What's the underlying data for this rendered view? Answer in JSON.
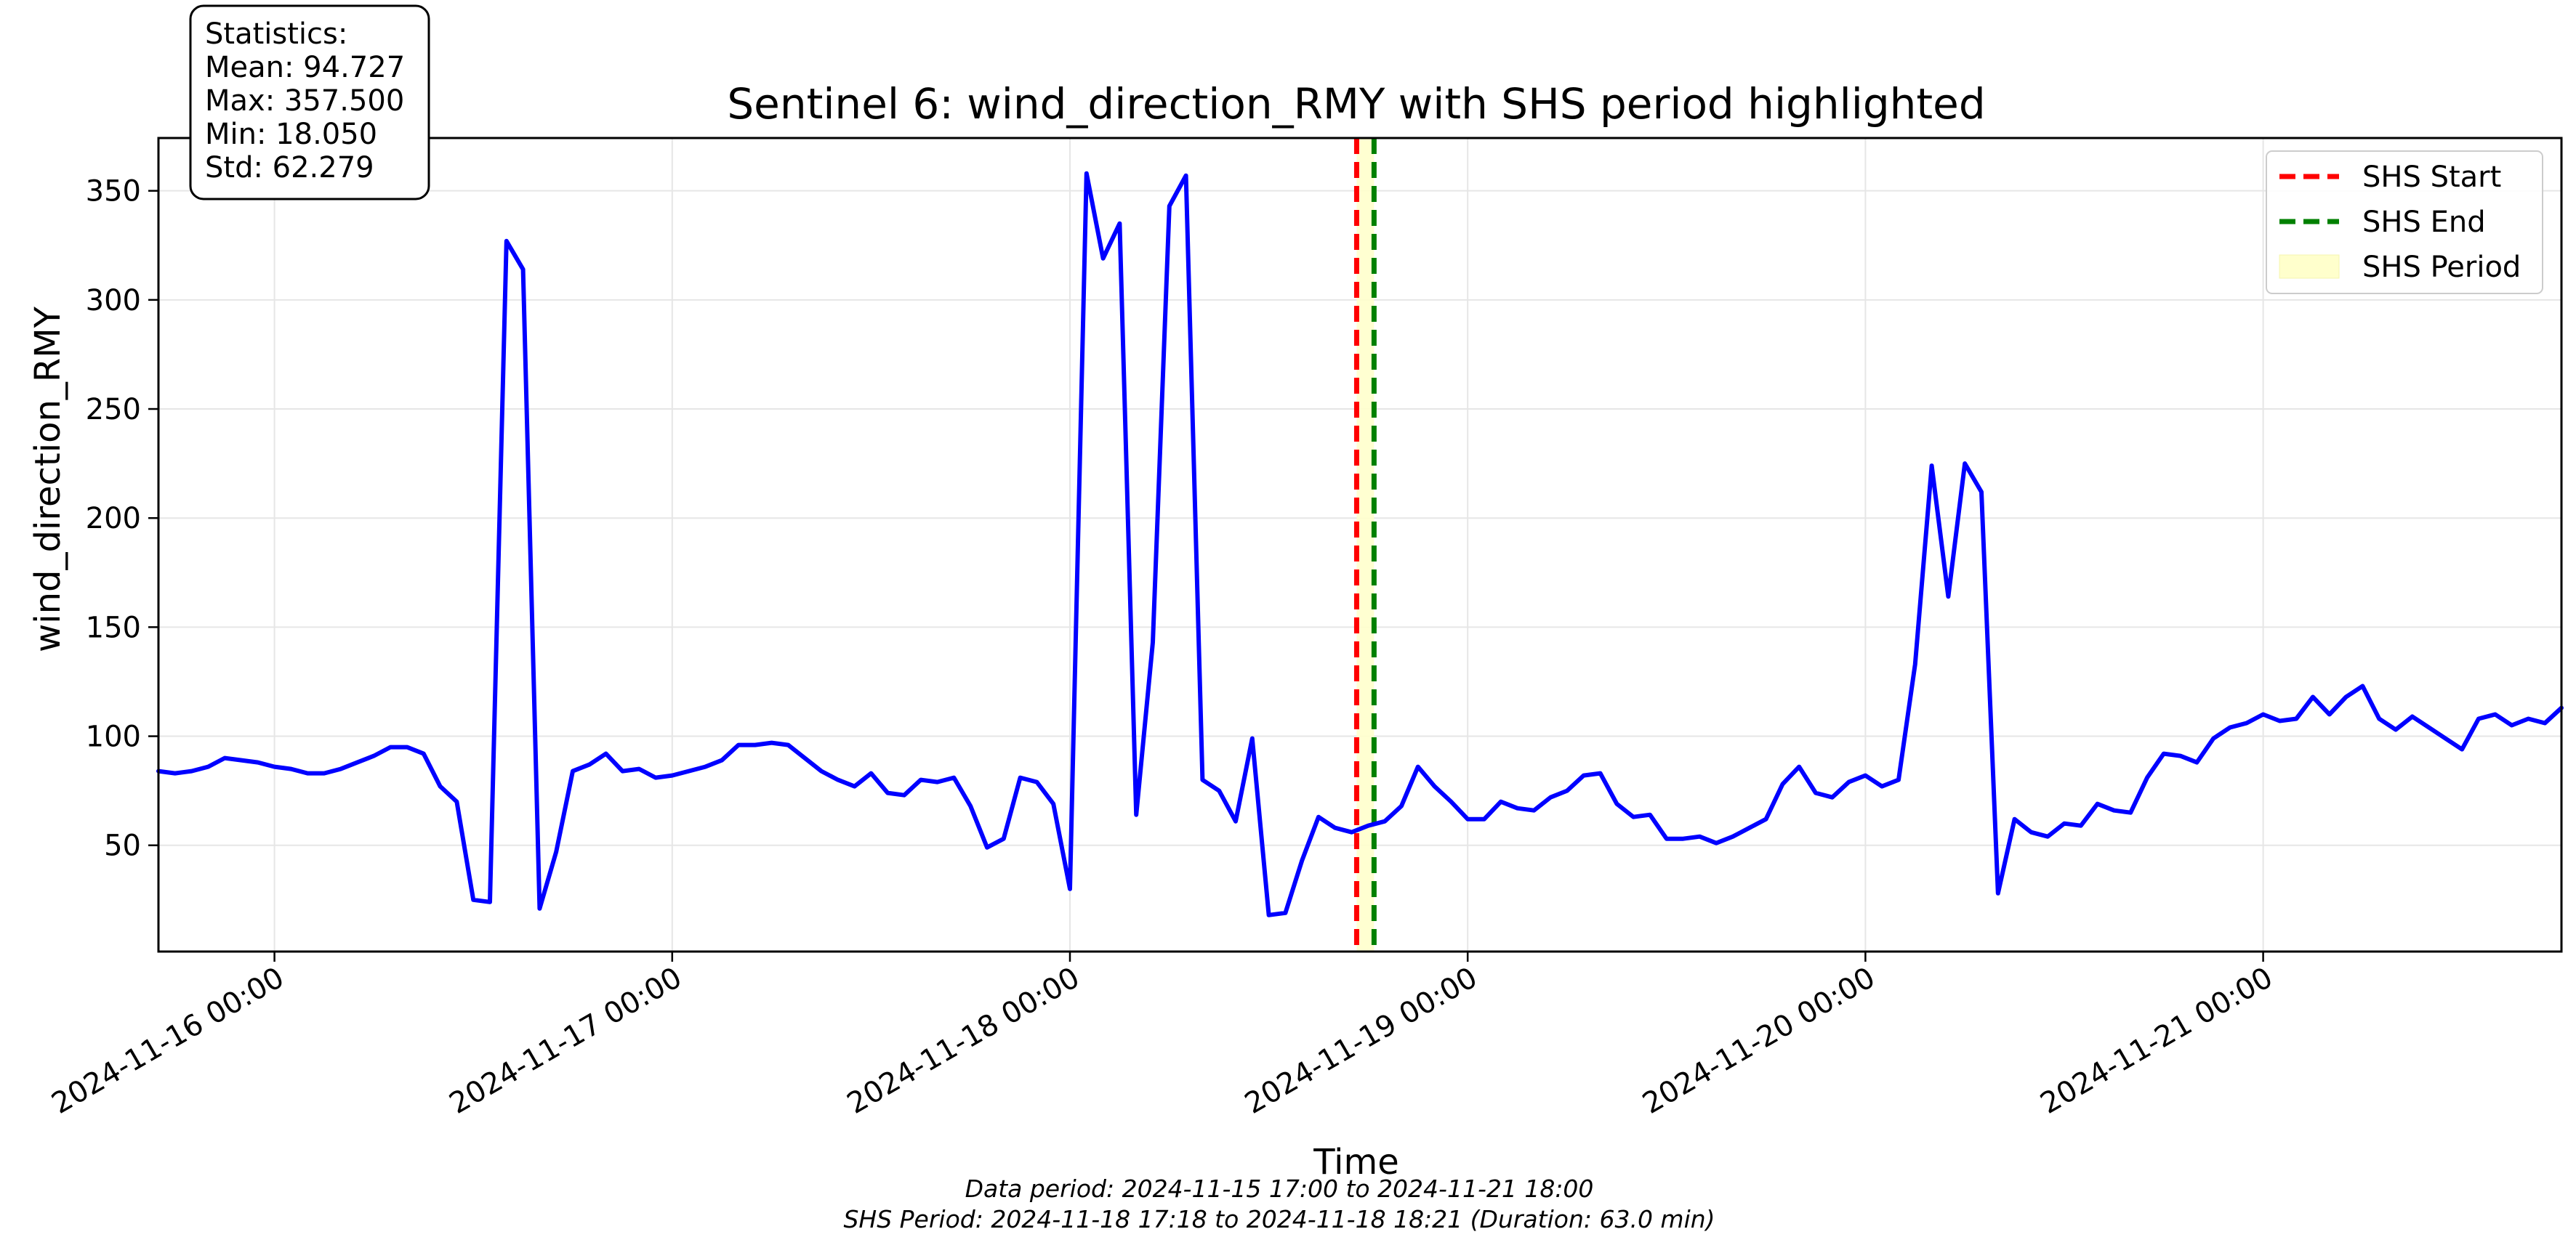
{
  "chart_data": {
    "type": "line",
    "title": "Sentinel 6: wind_direction_RMY with SHS period highlighted",
    "xlabel": "Time",
    "ylabel": "wind_direction_RMY",
    "x_range": [
      "2024-11-15 17:00",
      "2024-11-21 18:00"
    ],
    "ylim": [
      1.3,
      374.2
    ],
    "yticks": [
      50,
      100,
      150,
      200,
      250,
      300,
      350
    ],
    "yticklabels": [
      "50",
      "100",
      "150",
      "200",
      "250",
      "300",
      "350"
    ],
    "xticks": [
      "2024-11-16 00:00",
      "2024-11-17 00:00",
      "2024-11-18 00:00",
      "2024-11-19 00:00",
      "2024-11-20 00:00",
      "2024-11-21 00:00"
    ],
    "xticklabels": [
      "2024-11-16 00:00",
      "2024-11-17 00:00",
      "2024-11-18 00:00",
      "2024-11-19 00:00",
      "2024-11-20 00:00",
      "2024-11-21 00:00"
    ],
    "grid": true,
    "legend_position": "top-right",
    "series": [
      {
        "name": "wind_direction_RMY",
        "color": "#0000ff",
        "x": [
          "2024-11-15 17:00",
          "2024-11-15 18:00",
          "2024-11-15 19:00",
          "2024-11-15 20:00",
          "2024-11-15 21:00",
          "2024-11-15 22:00",
          "2024-11-15 23:00",
          "2024-11-16 00:00",
          "2024-11-16 01:00",
          "2024-11-16 02:00",
          "2024-11-16 03:00",
          "2024-11-16 04:00",
          "2024-11-16 05:00",
          "2024-11-16 06:00",
          "2024-11-16 07:00",
          "2024-11-16 08:00",
          "2024-11-16 09:00",
          "2024-11-16 10:00",
          "2024-11-16 11:00",
          "2024-11-16 12:00",
          "2024-11-16 13:00",
          "2024-11-16 14:00",
          "2024-11-16 15:00",
          "2024-11-16 16:00",
          "2024-11-16 17:00",
          "2024-11-16 18:00",
          "2024-11-16 19:00",
          "2024-11-16 20:00",
          "2024-11-16 21:00",
          "2024-11-16 22:00",
          "2024-11-16 23:00",
          "2024-11-17 00:00",
          "2024-11-17 01:00",
          "2024-11-17 02:00",
          "2024-11-17 03:00",
          "2024-11-17 04:00",
          "2024-11-17 05:00",
          "2024-11-17 06:00",
          "2024-11-17 07:00",
          "2024-11-17 08:00",
          "2024-11-17 09:00",
          "2024-11-17 10:00",
          "2024-11-17 11:00",
          "2024-11-17 12:00",
          "2024-11-17 13:00",
          "2024-11-17 14:00",
          "2024-11-17 15:00",
          "2024-11-17 16:00",
          "2024-11-17 17:00",
          "2024-11-17 18:00",
          "2024-11-17 19:00",
          "2024-11-17 20:00",
          "2024-11-17 21:00",
          "2024-11-17 22:00",
          "2024-11-17 23:00",
          "2024-11-18 00:00",
          "2024-11-18 01:00",
          "2024-11-18 02:00",
          "2024-11-18 03:00",
          "2024-11-18 04:00",
          "2024-11-18 05:00",
          "2024-11-18 06:00",
          "2024-11-18 07:00",
          "2024-11-18 08:00",
          "2024-11-18 09:00",
          "2024-11-18 10:00",
          "2024-11-18 11:00",
          "2024-11-18 12:00",
          "2024-11-18 13:00",
          "2024-11-18 14:00",
          "2024-11-18 15:00",
          "2024-11-18 16:00",
          "2024-11-18 17:00",
          "2024-11-18 18:00",
          "2024-11-18 19:00",
          "2024-11-18 20:00",
          "2024-11-18 21:00",
          "2024-11-18 22:00",
          "2024-11-18 23:00",
          "2024-11-19 00:00",
          "2024-11-19 01:00",
          "2024-11-19 02:00",
          "2024-11-19 03:00",
          "2024-11-19 04:00",
          "2024-11-19 05:00",
          "2024-11-19 06:00",
          "2024-11-19 07:00",
          "2024-11-19 08:00",
          "2024-11-19 09:00",
          "2024-11-19 10:00",
          "2024-11-19 11:00",
          "2024-11-19 12:00",
          "2024-11-19 13:00",
          "2024-11-19 14:00",
          "2024-11-19 15:00",
          "2024-11-19 16:00",
          "2024-11-19 17:00",
          "2024-11-19 18:00",
          "2024-11-19 19:00",
          "2024-11-19 20:00",
          "2024-11-19 21:00",
          "2024-11-19 22:00",
          "2024-11-19 23:00",
          "2024-11-20 00:00",
          "2024-11-20 01:00",
          "2024-11-20 02:00",
          "2024-11-20 03:00",
          "2024-11-20 04:00",
          "2024-11-20 05:00",
          "2024-11-20 06:00",
          "2024-11-20 07:00",
          "2024-11-20 08:00",
          "2024-11-20 09:00",
          "2024-11-20 10:00",
          "2024-11-20 11:00",
          "2024-11-20 12:00",
          "2024-11-20 13:00",
          "2024-11-20 14:00",
          "2024-11-20 15:00",
          "2024-11-20 16:00",
          "2024-11-20 17:00",
          "2024-11-20 18:00",
          "2024-11-20 19:00",
          "2024-11-20 20:00",
          "2024-11-20 21:00",
          "2024-11-20 22:00",
          "2024-11-20 23:00",
          "2024-11-21 00:00",
          "2024-11-21 01:00",
          "2024-11-21 02:00",
          "2024-11-21 03:00",
          "2024-11-21 04:00",
          "2024-11-21 05:00",
          "2024-11-21 06:00",
          "2024-11-21 07:00",
          "2024-11-21 08:00",
          "2024-11-21 09:00",
          "2024-11-21 10:00",
          "2024-11-21 11:00",
          "2024-11-21 12:00",
          "2024-11-21 13:00",
          "2024-11-21 14:00",
          "2024-11-21 15:00",
          "2024-11-21 16:00",
          "2024-11-21 17:00",
          "2024-11-21 18:00"
        ],
        "y": [
          84,
          83,
          84,
          86,
          90,
          89,
          88,
          86,
          85,
          83,
          83,
          85,
          88,
          91,
          95,
          95,
          92,
          77,
          70,
          25,
          24,
          327,
          314,
          21,
          47,
          84,
          87,
          92,
          84,
          85,
          81,
          82,
          84,
          86,
          89,
          96,
          96,
          97,
          96,
          90,
          84,
          80,
          77,
          83,
          74,
          73,
          80,
          79,
          81,
          68,
          49,
          53,
          81,
          79,
          69,
          30,
          358,
          319,
          335,
          64,
          143,
          343,
          357,
          80,
          75,
          61,
          99,
          18,
          19,
          43,
          63,
          58,
          56,
          59,
          61,
          68,
          86,
          77,
          70,
          62,
          62,
          70,
          67,
          66,
          72,
          75,
          82,
          83,
          69,
          63,
          64,
          53,
          53,
          54,
          51,
          54,
          58,
          62,
          78,
          86,
          74,
          72,
          79,
          82,
          77,
          80,
          133,
          224,
          164,
          225,
          212,
          28,
          62,
          56,
          54,
          60,
          59,
          69,
          66,
          65,
          81,
          92,
          91,
          88,
          99,
          104,
          106,
          110,
          107,
          108,
          118,
          110,
          118,
          123,
          108,
          103,
          109,
          104,
          99,
          94,
          108,
          110,
          105,
          108,
          106,
          113
        ]
      }
    ],
    "shs": {
      "start": "2024-11-18 17:18",
      "end": "2024-11-18 18:21"
    },
    "legend": {
      "items": [
        {
          "label": "SHS Start",
          "color": "#ff0000",
          "kind": "dashed"
        },
        {
          "label": "SHS End",
          "color": "#008000",
          "kind": "dashed"
        },
        {
          "label": "SHS Period",
          "color": "#ffffcc",
          "kind": "patch"
        }
      ]
    },
    "stats_box": {
      "lines": [
        "Statistics:",
        "Mean: 94.727",
        "Max: 357.500",
        "Min: 18.050",
        "Std: 62.279"
      ]
    },
    "footer": {
      "line1": "Data period: 2024-11-15 17:00 to 2024-11-21 18:00",
      "line2": "SHS Period: 2024-11-18 17:18 to 2024-11-18 18:21 (Duration: 63.0 min)"
    },
    "colors": {
      "line": "#0000ff",
      "shs_start": "#ff0000",
      "shs_end": "#008000",
      "shs_fill": "#ffffcc",
      "grid": "#e6e6e6"
    }
  }
}
